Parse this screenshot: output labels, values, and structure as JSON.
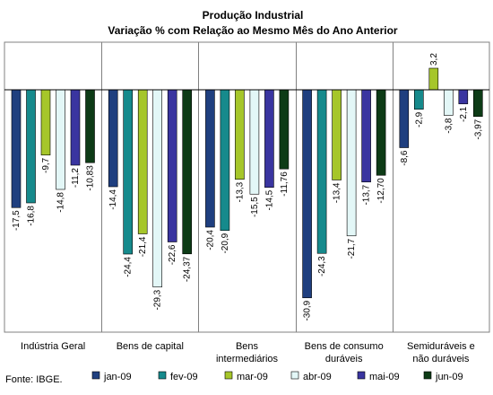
{
  "chart_data": {
    "type": "bar",
    "title": "Produção Industrial",
    "subtitle": "Variação % com Relação ao Mesmo Mês do Ano Anterior",
    "categories": [
      [
        "Indústria Geral"
      ],
      [
        "Bens de capital"
      ],
      [
        "Bens",
        "intermediários"
      ],
      [
        "Bens de consumo",
        "duráveis"
      ],
      [
        "Semiduráveis e",
        "não duráveis"
      ]
    ],
    "series": [
      {
        "name": "jan-09",
        "color": "#1F3F7F",
        "values": [
          -17.5,
          -14.4,
          -20.4,
          -30.9,
          -8.6
        ],
        "labels": [
          "-17,5",
          "-14,4",
          "-20,4",
          "-30,9",
          "-8,6"
        ]
      },
      {
        "name": "fev-09",
        "color": "#168A8C",
        "values": [
          -16.8,
          -24.4,
          -20.9,
          -24.3,
          -2.9
        ],
        "labels": [
          "-16,8",
          "-24,4",
          "-20,9",
          "-24,3",
          "-2,9"
        ]
      },
      {
        "name": "mar-09",
        "color": "#A6C62A",
        "values": [
          -9.7,
          -21.4,
          -13.3,
          -13.4,
          3.2
        ],
        "labels": [
          "-9,7",
          "-21,4",
          "-13,3",
          "-13,4",
          "3,2"
        ]
      },
      {
        "name": "abr-09",
        "color": "#E3F7F7",
        "values": [
          -14.8,
          -29.3,
          -15.5,
          -21.7,
          -3.8
        ],
        "labels": [
          "-14,8",
          "-29,3",
          "-15,5",
          "-21,7",
          "-3,8"
        ]
      },
      {
        "name": "mai-09",
        "color": "#3A35A0",
        "values": [
          -11.2,
          -22.6,
          -14.5,
          -13.7,
          -2.1
        ],
        "labels": [
          "-11,2",
          "-22,6",
          "-14,5",
          "-13,7",
          "-2,1"
        ]
      },
      {
        "name": "jun-09",
        "color": "#0D3B16",
        "values": [
          -10.83,
          -24.37,
          -11.76,
          -12.7,
          -3.97
        ],
        "labels": [
          "-10,83",
          "-24,37",
          "-11,76",
          "-12,70",
          "-3,97"
        ]
      }
    ],
    "grid": false,
    "legend": "bottom"
  },
  "footer": {
    "source": "Fonte: IBGE."
  }
}
